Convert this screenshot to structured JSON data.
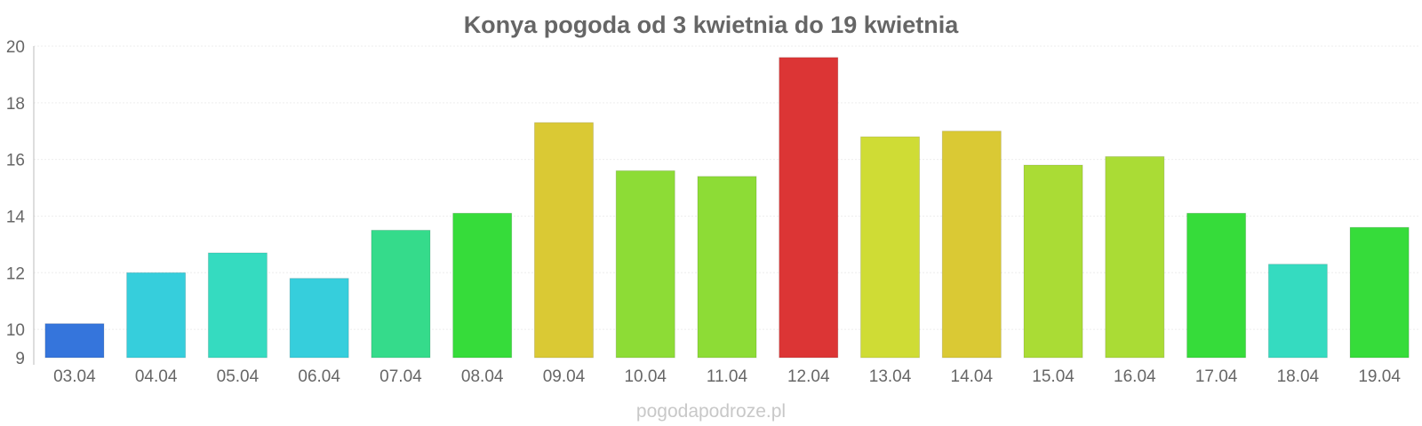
{
  "chart_data": {
    "type": "bar",
    "title": "Konya pogoda od 3 kwietnia do 19 kwietnia",
    "xlabel": "",
    "ylabel": "",
    "categories": [
      "03.04",
      "04.04",
      "05.04",
      "06.04",
      "07.04",
      "08.04",
      "09.04",
      "10.04",
      "11.04",
      "12.04",
      "13.04",
      "14.04",
      "15.04",
      "16.04",
      "17.04",
      "18.04",
      "19.04"
    ],
    "values": [
      10.2,
      12.0,
      12.7,
      11.8,
      13.5,
      14.1,
      17.3,
      15.6,
      15.4,
      19.6,
      16.8,
      17.0,
      15.8,
      16.1,
      14.1,
      12.3,
      13.6
    ],
    "colors": [
      "#3575dc",
      "#36cedc",
      "#35dbc0",
      "#36cedc",
      "#35db8b",
      "#36dc3a",
      "#dac934",
      "#8ddc36",
      "#8ddc36",
      "#dc3535",
      "#cfdc35",
      "#dac934",
      "#aadc35",
      "#aadc35",
      "#36dc3a",
      "#35dbc0",
      "#36dc3a"
    ],
    "ylim": [
      9,
      20
    ],
    "yticks": [
      9,
      10,
      12,
      14,
      16,
      18,
      20
    ],
    "grid": true,
    "legend": "none"
  },
  "footer": {
    "watermark": "pogodapodroze.pl"
  }
}
